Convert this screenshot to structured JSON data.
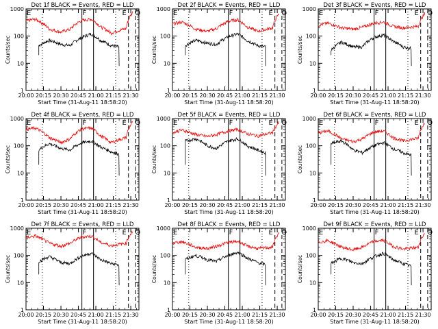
{
  "chart_data": [
    {
      "type": "line",
      "title": "Det 1f BLACK = Events, RED = LLD",
      "xlabel": "Start Time (31-Aug-11 18:58:20)",
      "ylabel": "Counts/sec",
      "yscale": "log",
      "ylim": [
        1,
        1000
      ],
      "x_ticks": [
        "20:00",
        "20:15",
        "20:30",
        "20:45",
        "21:00",
        "21:15",
        "21:30"
      ],
      "y_ticks": [
        "1",
        "10",
        "100",
        "1000"
      ],
      "markers": [
        "E",
        "F",
        "E",
        "Q"
      ],
      "series": [
        {
          "name": "Events",
          "color": "#000000",
          "x": [
            "20:11",
            "20:20",
            "20:30",
            "20:38",
            "20:48",
            "20:56",
            "21:04",
            "21:13",
            "21:20"
          ],
          "values": [
            45,
            70,
            50,
            45,
            90,
            120,
            70,
            45,
            40
          ]
        },
        {
          "name": "LLD",
          "color": "#e01010",
          "x": [
            "20:00",
            "20:08",
            "20:20",
            "20:30",
            "20:38",
            "20:48",
            "20:56",
            "21:04",
            "21:13",
            "21:26",
            "21:32"
          ],
          "values": [
            360,
            420,
            180,
            140,
            180,
            380,
            420,
            220,
            130,
            190,
            800
          ]
        }
      ]
    },
    {
      "type": "line",
      "title": "Det 2f BLACK = Events, RED = LLD",
      "xlabel": "Start Time (31-Aug-11 18:58:20)",
      "ylabel": "Counts/sec",
      "yscale": "log",
      "ylim": [
        1,
        1000
      ],
      "x_ticks": [
        "20:00",
        "20:15",
        "20:30",
        "20:45",
        "21:00",
        "21:15",
        "21:30"
      ],
      "y_ticks": [
        "1",
        "10",
        "100",
        "1000"
      ],
      "markers": [
        "E",
        "F",
        "E",
        "Q"
      ],
      "series": [
        {
          "name": "Events",
          "color": "#000000",
          "x": [
            "20:11",
            "20:20",
            "20:30",
            "20:38",
            "20:48",
            "20:56",
            "21:04",
            "21:13",
            "21:20"
          ],
          "values": [
            45,
            70,
            55,
            50,
            95,
            120,
            70,
            45,
            40
          ]
        },
        {
          "name": "LLD",
          "color": "#e01010",
          "x": [
            "20:00",
            "20:08",
            "20:20",
            "20:30",
            "20:38",
            "20:48",
            "20:56",
            "21:04",
            "21:13",
            "21:26",
            "21:32"
          ],
          "values": [
            280,
            330,
            180,
            150,
            190,
            350,
            400,
            220,
            150,
            200,
            700
          ]
        }
      ]
    },
    {
      "type": "line",
      "title": "Det 3f BLACK = Events, RED = LLD",
      "xlabel": "Start Time (31-Aug-11 18:58:20)",
      "ylabel": "Counts/sec",
      "yscale": "log",
      "ylim": [
        1,
        1000
      ],
      "x_ticks": [
        "20:00",
        "20:15",
        "20:30",
        "20:45",
        "21:00",
        "21:15",
        "21:30"
      ],
      "y_ticks": [
        "1",
        "10",
        "100",
        "1000"
      ],
      "markers": [
        "E",
        "F",
        "E",
        "Q"
      ],
      "series": [
        {
          "name": "Events",
          "color": "#000000",
          "x": [
            "20:11",
            "20:20",
            "20:30",
            "20:38",
            "20:48",
            "20:56",
            "21:04",
            "21:13",
            "21:20"
          ],
          "values": [
            30,
            60,
            40,
            40,
            90,
            110,
            65,
            40,
            35
          ]
        },
        {
          "name": "LLD",
          "color": "#e01010",
          "x": [
            "20:00",
            "20:08",
            "20:20",
            "20:30",
            "20:38",
            "20:48",
            "20:56",
            "21:04",
            "21:13",
            "21:26",
            "21:32"
          ],
          "values": [
            250,
            300,
            200,
            180,
            210,
            300,
            330,
            230,
            200,
            230,
            700
          ]
        }
      ]
    },
    {
      "type": "line",
      "title": "Det 4f BLACK = Events, RED = LLD",
      "xlabel": "Start Time (31-Aug-11 18:58:20)",
      "ylabel": "Counts/sec",
      "yscale": "log",
      "ylim": [
        1,
        1000
      ],
      "x_ticks": [
        "20:00",
        "20:15",
        "20:30",
        "20:45",
        "21:00",
        "21:15",
        "21:30"
      ],
      "y_ticks": [
        "1",
        "10",
        "100",
        "1000"
      ],
      "markers": [
        "E",
        "F",
        "E",
        "Q"
      ],
      "series": [
        {
          "name": "Events",
          "color": "#000000",
          "x": [
            "20:11",
            "20:20",
            "20:30",
            "20:38",
            "20:48",
            "20:56",
            "21:04",
            "21:13",
            "21:20"
          ],
          "values": [
            70,
            120,
            80,
            70,
            130,
            150,
            90,
            60,
            50
          ]
        },
        {
          "name": "LLD",
          "color": "#e01010",
          "x": [
            "20:00",
            "20:08",
            "20:20",
            "20:30",
            "20:38",
            "20:48",
            "20:56",
            "21:04",
            "21:13",
            "21:26",
            "21:32"
          ],
          "values": [
            400,
            450,
            200,
            130,
            180,
            420,
            450,
            230,
            130,
            200,
            800
          ]
        }
      ]
    },
    {
      "type": "line",
      "title": "Det 5f BLACK = Events, RED = LLD",
      "xlabel": "Start Time (31-Aug-11 18:58:20)",
      "ylabel": "Counts/sec",
      "yscale": "log",
      "ylim": [
        1,
        1000
      ],
      "x_ticks": [
        "20:00",
        "20:15",
        "20:30",
        "20:45",
        "21:00",
        "21:15",
        "21:30"
      ],
      "y_ticks": [
        "1",
        "10",
        "100",
        "1000"
      ],
      "markers": [
        "E",
        "F",
        "E",
        "Q"
      ],
      "series": [
        {
          "name": "Events",
          "color": "#000000",
          "x": [
            "20:11",
            "20:20",
            "20:30",
            "20:38",
            "20:48",
            "20:56",
            "21:04",
            "21:13",
            "21:20"
          ],
          "values": [
            150,
            180,
            100,
            80,
            150,
            180,
            100,
            70,
            55
          ]
        },
        {
          "name": "LLD",
          "color": "#e01010",
          "x": [
            "20:00",
            "20:08",
            "20:20",
            "20:30",
            "20:38",
            "20:48",
            "20:56",
            "21:04",
            "21:13",
            "21:26",
            "21:32"
          ],
          "values": [
            300,
            380,
            260,
            220,
            260,
            350,
            400,
            280,
            230,
            300,
            750
          ]
        }
      ]
    },
    {
      "type": "line",
      "title": "Det 6f BLACK = Events, RED = LLD",
      "xlabel": "Start Time (31-Aug-11 18:58:20)",
      "ylabel": "Counts/sec",
      "yscale": "log",
      "ylim": [
        1,
        1000
      ],
      "x_ticks": [
        "20:00",
        "20:15",
        "20:30",
        "20:45",
        "21:00",
        "21:15",
        "21:30"
      ],
      "y_ticks": [
        "1",
        "10",
        "100",
        "1000"
      ],
      "markers": [
        "E",
        "F",
        "E",
        "Q"
      ],
      "series": [
        {
          "name": "Events",
          "color": "#000000",
          "x": [
            "20:11",
            "20:20",
            "20:30",
            "20:38",
            "20:48",
            "20:56",
            "21:04",
            "21:13",
            "21:20"
          ],
          "values": [
            120,
            150,
            70,
            55,
            100,
            130,
            80,
            55,
            45
          ]
        },
        {
          "name": "LLD",
          "color": "#e01010",
          "x": [
            "20:00",
            "20:08",
            "20:20",
            "20:30",
            "20:38",
            "20:48",
            "20:56",
            "21:04",
            "21:13",
            "21:26",
            "21:32"
          ],
          "values": [
            300,
            350,
            180,
            140,
            180,
            320,
            350,
            200,
            150,
            190,
            750
          ]
        }
      ]
    },
    {
      "type": "line",
      "title": "Det 7f BLACK = Events, RED = LLD",
      "xlabel": "Start Time (31-Aug-11 18:58:20)",
      "ylabel": "Counts/sec",
      "yscale": "log",
      "ylim": [
        1,
        1000
      ],
      "x_ticks": [
        "20:00",
        "20:15",
        "20:30",
        "20:45",
        "21:00",
        "21:15",
        "21:30"
      ],
      "y_ticks": [
        "1",
        "10",
        "100",
        "1000"
      ],
      "markers": [
        "E",
        "F",
        "E",
        "Q"
      ],
      "series": [
        {
          "name": "Events",
          "color": "#000000",
          "x": [
            "20:11",
            "20:20",
            "20:30",
            "20:38",
            "20:48",
            "20:56",
            "21:04",
            "21:13",
            "21:20"
          ],
          "values": [
            60,
            90,
            55,
            50,
            95,
            120,
            70,
            50,
            45
          ]
        },
        {
          "name": "LLD",
          "color": "#e01010",
          "x": [
            "20:00",
            "20:08",
            "20:20",
            "20:30",
            "20:38",
            "20:48",
            "20:56",
            "21:04",
            "21:13",
            "21:26",
            "21:32"
          ],
          "values": [
            450,
            520,
            280,
            220,
            280,
            480,
            520,
            300,
            230,
            280,
            800
          ]
        }
      ]
    },
    {
      "type": "line",
      "title": "Det 8f BLACK = Events, RED = LLD",
      "xlabel": "Start Time (31-Aug-11 18:58:20)",
      "ylabel": "Counts/sec",
      "yscale": "log",
      "ylim": [
        1,
        1000
      ],
      "x_ticks": [
        "20:00",
        "20:15",
        "20:30",
        "20:45",
        "21:00",
        "21:15",
        "21:30"
      ],
      "y_ticks": [
        "1",
        "10",
        "100",
        "1000"
      ],
      "markers": [
        "E",
        "F",
        "E",
        "Q"
      ],
      "series": [
        {
          "name": "Events",
          "color": "#000000",
          "x": [
            "20:11",
            "20:20",
            "20:30",
            "20:38",
            "20:48",
            "20:56",
            "21:04",
            "21:13",
            "21:20"
          ],
          "values": [
            70,
            100,
            70,
            60,
            100,
            130,
            80,
            55,
            45
          ]
        },
        {
          "name": "LLD",
          "color": "#e01010",
          "x": [
            "20:00",
            "20:08",
            "20:20",
            "20:30",
            "20:38",
            "20:48",
            "20:56",
            "21:04",
            "21:13",
            "21:26",
            "21:32"
          ],
          "values": [
            280,
            320,
            200,
            180,
            220,
            300,
            330,
            220,
            180,
            200,
            700
          ]
        }
      ]
    },
    {
      "type": "line",
      "title": "Det 9f BLACK = Events, RED = LLD",
      "xlabel": "Start Time (31-Aug-11 18:58:20)",
      "ylabel": "Counts/sec",
      "yscale": "log",
      "ylim": [
        1,
        1000
      ],
      "x_ticks": [
        "20:00",
        "20:15",
        "20:30",
        "20:45",
        "21:00",
        "21:15",
        "21:30"
      ],
      "y_ticks": [
        "1",
        "10",
        "100",
        "1000"
      ],
      "markers": [
        "E",
        "F",
        "E",
        "Q"
      ],
      "series": [
        {
          "name": "Events",
          "color": "#000000",
          "x": [
            "20:11",
            "20:20",
            "20:30",
            "20:38",
            "20:48",
            "20:56",
            "21:04",
            "21:13",
            "21:20"
          ],
          "values": [
            50,
            80,
            55,
            50,
            90,
            120,
            70,
            50,
            40
          ]
        },
        {
          "name": "LLD",
          "color": "#e01010",
          "x": [
            "20:00",
            "20:08",
            "20:20",
            "20:30",
            "20:38",
            "20:48",
            "20:56",
            "21:04",
            "21:13",
            "21:26",
            "21:32"
          ],
          "values": [
            300,
            350,
            200,
            160,
            200,
            330,
            360,
            220,
            170,
            200,
            700
          ]
        }
      ]
    }
  ]
}
